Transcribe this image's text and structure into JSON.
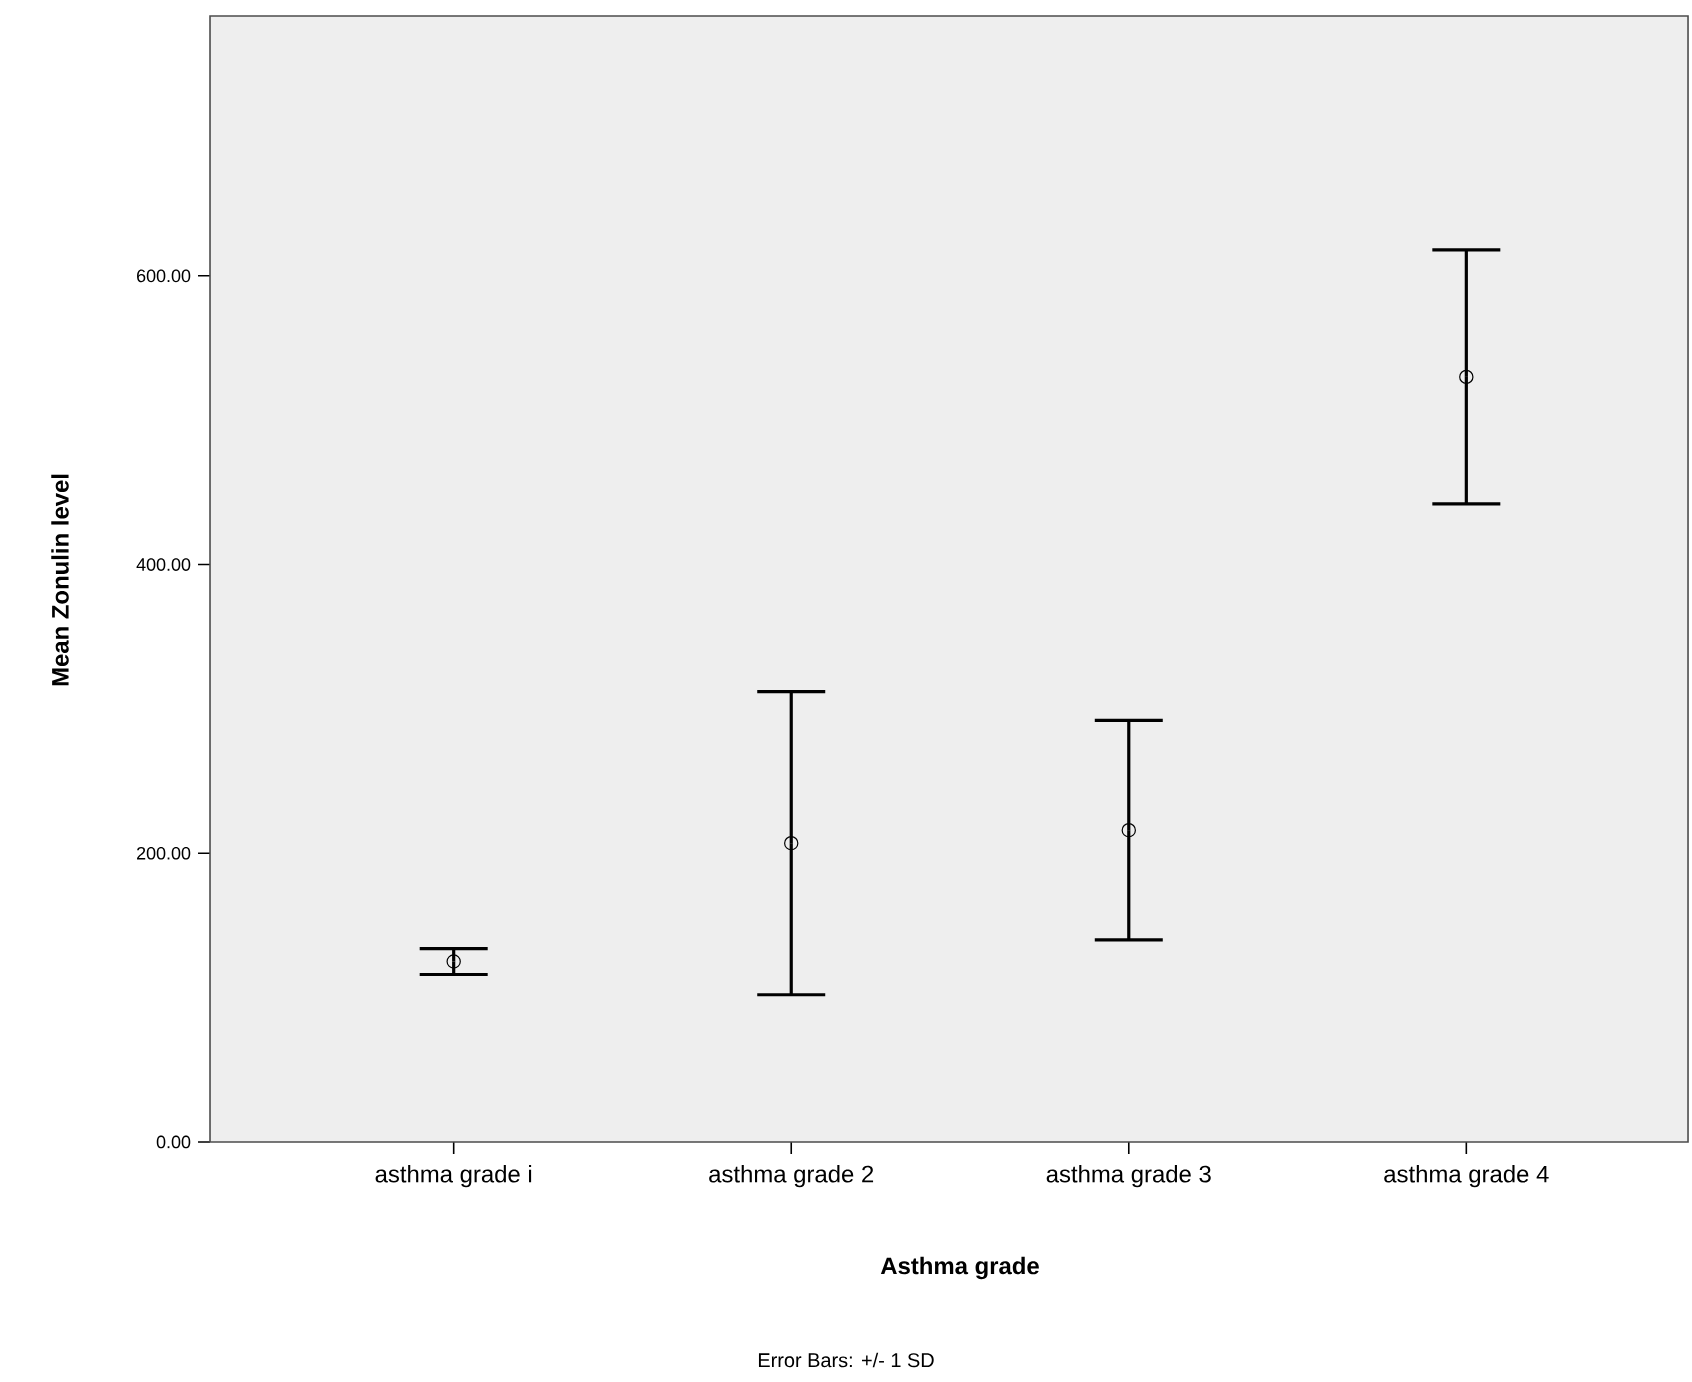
{
  "chart_data": {
    "type": "scatter",
    "xlabel": "Asthma grade",
    "ylabel": "Mean Zonulin level",
    "categories": [
      "asthma grade i",
      "asthma grade 2",
      "asthma grade 3",
      "asthma grade 4"
    ],
    "values": [
      125,
      207,
      216,
      530
    ],
    "errors": [
      9,
      105,
      76,
      88
    ],
    "color": "#000000",
    "marker": "circle",
    "ylim": [
      0,
      780
    ],
    "yticks": [
      {
        "value": 0,
        "label": "0.00"
      },
      {
        "value": 200,
        "label": "200.00"
      },
      {
        "value": 400,
        "label": "400.00"
      },
      {
        "value": 600,
        "label": "600.00"
      }
    ],
    "grid": false,
    "annotations": [
      "Error Bars: +/- 1 SD"
    ]
  }
}
